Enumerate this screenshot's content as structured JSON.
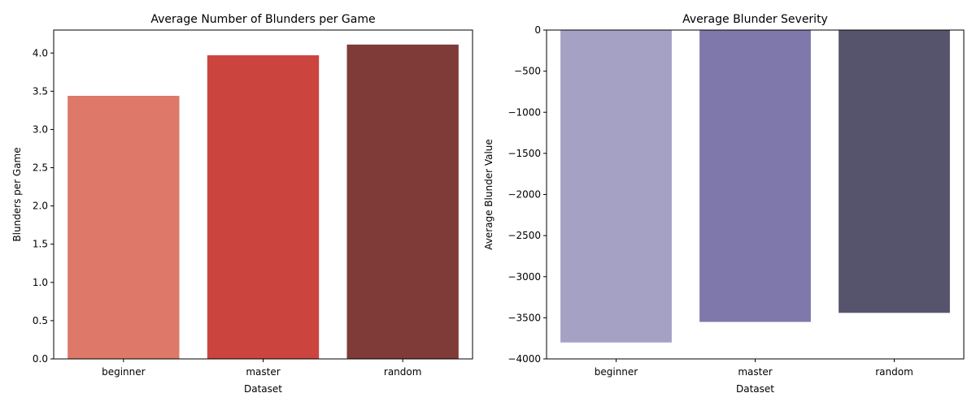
{
  "chart_data": [
    {
      "type": "bar",
      "title": "Average Number of Blunders per Game",
      "xlabel": "Dataset",
      "ylabel": "Blunders per Game",
      "categories": [
        "beginner",
        "master",
        "random"
      ],
      "values": [
        3.44,
        3.97,
        4.11
      ],
      "colors": [
        "#de7869",
        "#cb453e",
        "#7e3b38"
      ],
      "ylim": [
        0,
        4.3
      ],
      "yticks": [
        0.0,
        0.5,
        1.0,
        1.5,
        2.0,
        2.5,
        3.0,
        3.5,
        4.0
      ],
      "ytick_labels": [
        "0.0",
        "0.5",
        "1.0",
        "1.5",
        "2.0",
        "2.5",
        "3.0",
        "3.5",
        "4.0"
      ],
      "grid": false,
      "legend": "none"
    },
    {
      "type": "bar",
      "title": "Average Blunder Severity",
      "xlabel": "Dataset",
      "ylabel": "Average Blunder Value",
      "categories": [
        "beginner",
        "master",
        "random"
      ],
      "values": [
        -3800,
        -3550,
        -3440
      ],
      "colors": [
        "#a4a1c5",
        "#7f78ab",
        "#56546d"
      ],
      "ylim": [
        -4000,
        0
      ],
      "yticks": [
        0,
        -500,
        -1000,
        -1500,
        -2000,
        -2500,
        -3000,
        -3500,
        -4000
      ],
      "ytick_labels": [
        "0",
        "−500",
        "−1000",
        "−1500",
        "−2000",
        "−2500",
        "−3000",
        "−3500",
        "−4000"
      ],
      "grid": false,
      "legend": "none"
    }
  ]
}
